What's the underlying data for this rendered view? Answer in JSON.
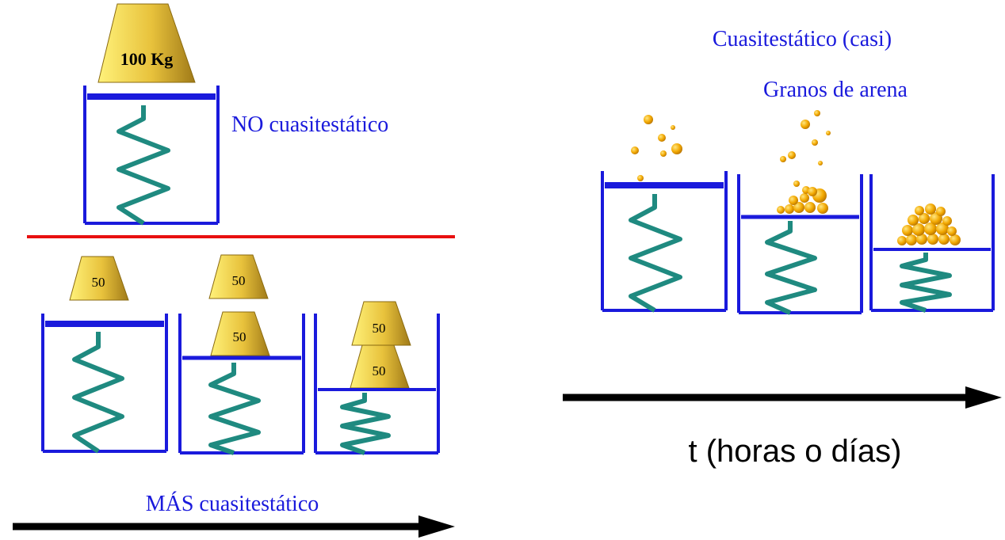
{
  "labels": {
    "weight_big": "100 Kg",
    "weight_small": "50",
    "no_quasistatic": "NO cuasitestático",
    "more_quasistatic": "MÁS cuasitestático",
    "quasistatic_almost": "Cuasitestático (casi)",
    "sand_grains": "Granos de arena",
    "time_axis": "t (horas o días)"
  },
  "colors": {
    "container": "#1a1adc",
    "piston": "#1a1adc",
    "spring": "#1f8a80",
    "divider": "#e81010",
    "arrow": "#000000",
    "text_blue": "#1a1adc",
    "weight_gold_light": "#fff27a",
    "weight_gold_dark": "#b08a1e",
    "sand": "#f2a800"
  }
}
